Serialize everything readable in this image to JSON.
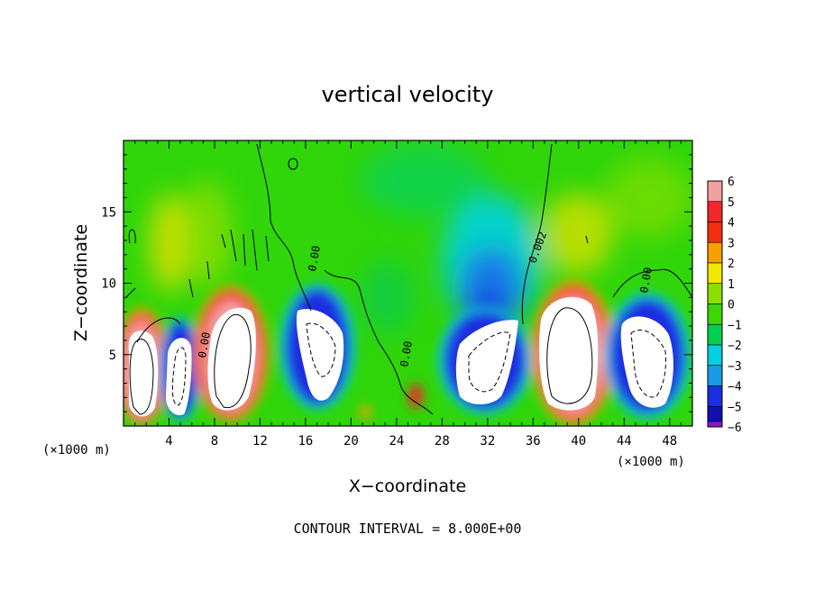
{
  "chart_data": {
    "type": "heatmap",
    "title": "vertical velocity",
    "xlabel": "X−coordinate",
    "ylabel": "Z−coordinate",
    "x_unit": "(×1000 m)",
    "y_unit": "(×1000 m)",
    "xlim": [
      0,
      50
    ],
    "ylim": [
      0,
      20
    ],
    "x_ticks": [
      4,
      8,
      12,
      16,
      20,
      24,
      28,
      32,
      36,
      40,
      44,
      48
    ],
    "y_ticks": [
      5,
      10,
      15
    ],
    "colorbar": {
      "min": -6,
      "max": 6,
      "levels": [
        6,
        5,
        4,
        3,
        2,
        1,
        0,
        -1,
        -2,
        -3,
        -4,
        -5,
        -6
      ],
      "labels": [
        "6",
        "5",
        "4",
        "3",
        "2",
        "1",
        "0",
        "−1",
        "−2",
        "−3",
        "−4",
        "−5",
        "−6"
      ],
      "colors": [
        "#f4a0a0",
        "#f02828",
        "#f42f10",
        "#f7a000",
        "#f2e800",
        "#8ce000",
        "#38d800",
        "#00d050",
        "#00d0e0",
        "#1a9be8",
        "#1a2fe0",
        "#1010b0",
        "#8a18c8"
      ]
    },
    "contour_interval": "CONTOUR INTERVAL = 8.000E+00",
    "contour_labels": [
      "0.00",
      "0.00",
      "0.00",
      "0.002",
      "0.00"
    ],
    "cells": [
      {
        "x": 1.3,
        "z": 4.0,
        "sign": "up"
      },
      {
        "x": 5.0,
        "z": 3.5,
        "sign": "down"
      },
      {
        "x": 9.8,
        "z": 5.0,
        "sign": "up"
      },
      {
        "x": 17.0,
        "z": 5.0,
        "sign": "down"
      },
      {
        "x": 32.0,
        "z": 5.5,
        "sign": "down"
      },
      {
        "x": 39.5,
        "z": 5.0,
        "sign": "up"
      },
      {
        "x": 45.5,
        "z": 4.5,
        "sign": "down"
      }
    ],
    "grid": false,
    "legend_placement": "right"
  }
}
